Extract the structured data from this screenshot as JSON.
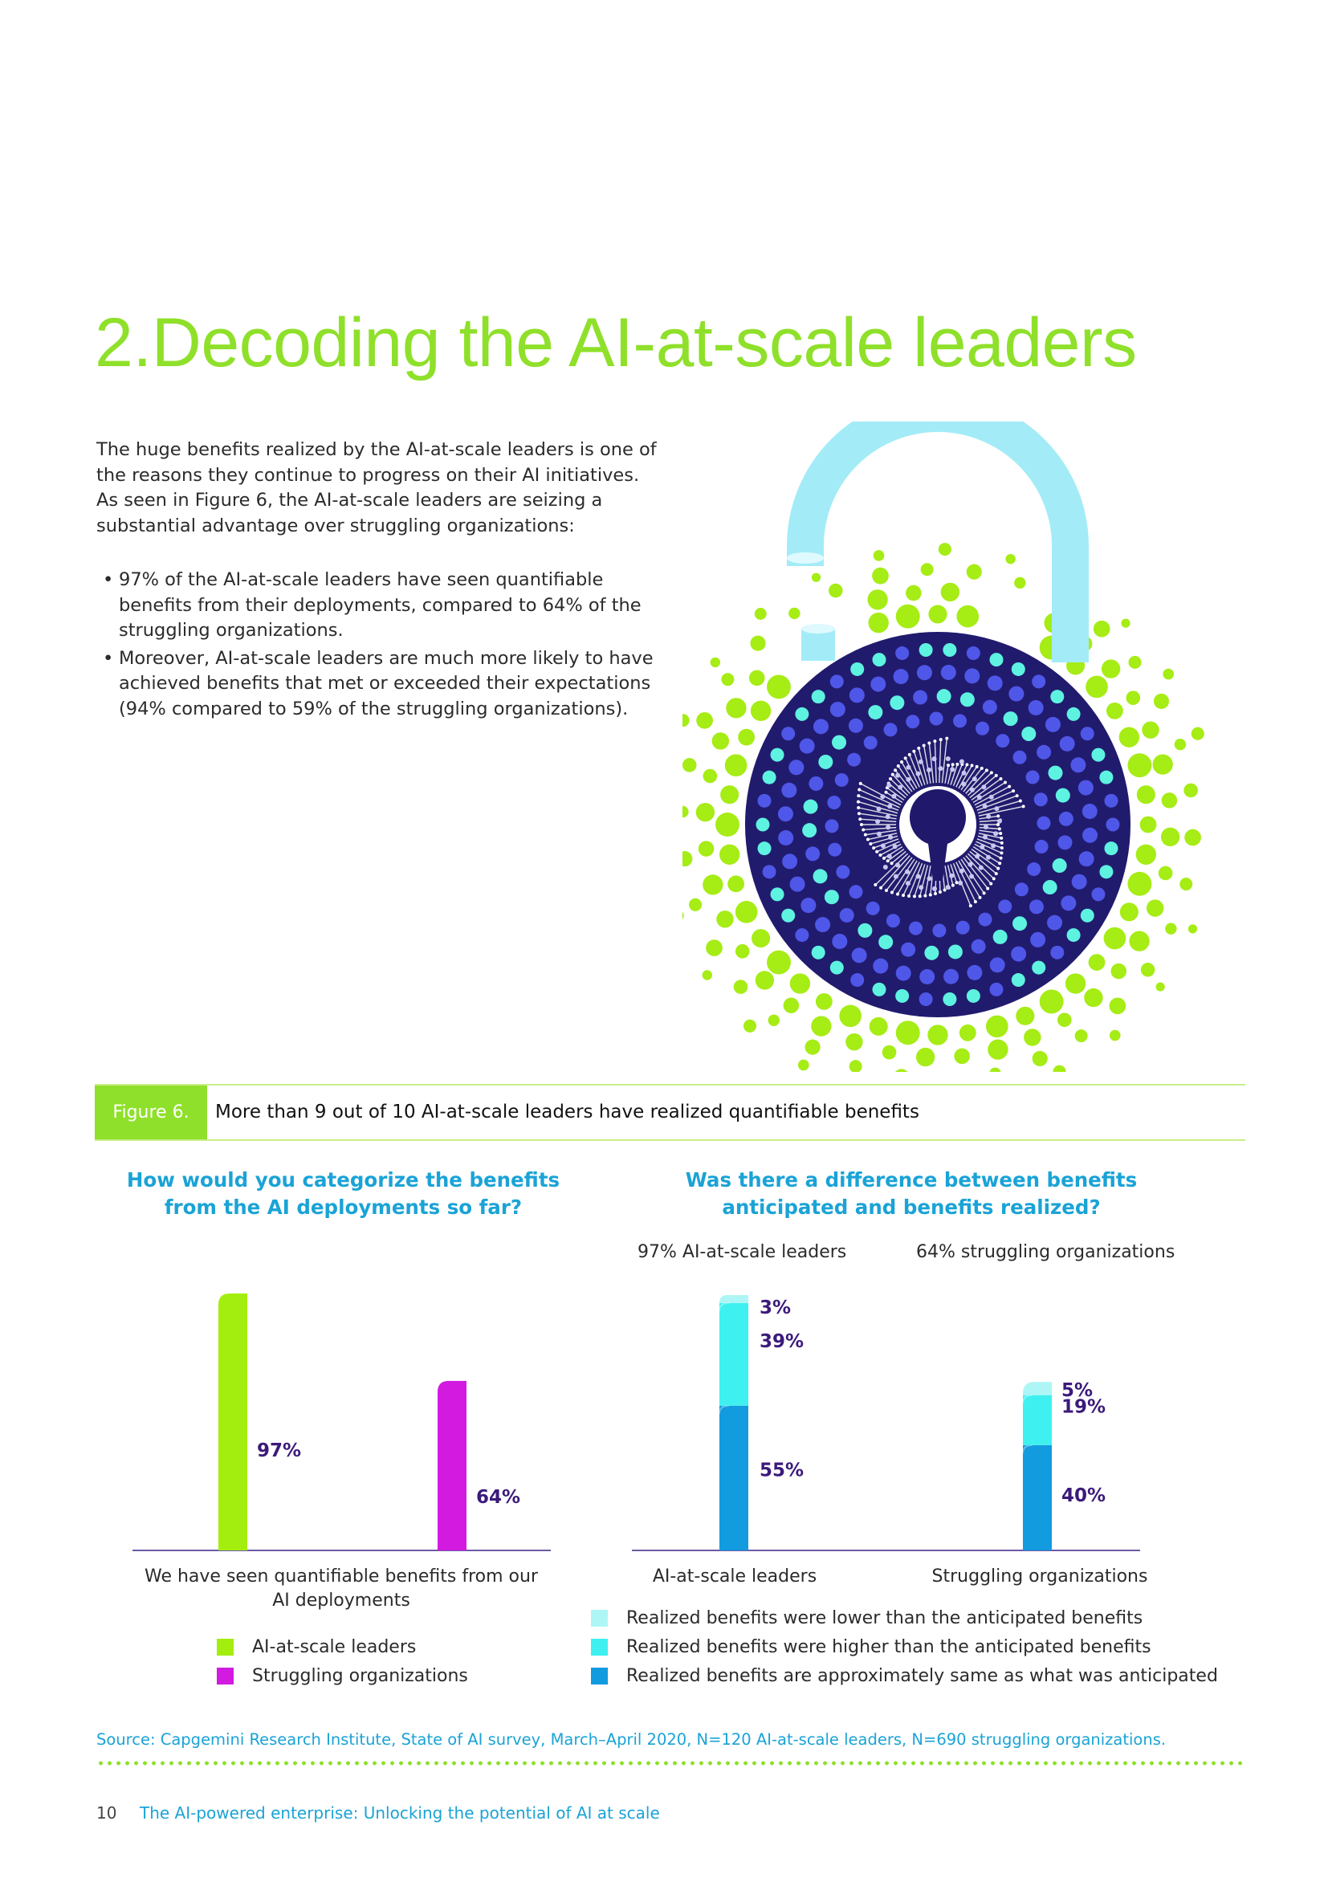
{
  "page": {
    "title": "2.Decoding the AI-at-scale leaders",
    "intro": "The huge benefits realized by the AI-at-scale leaders is one of the reasons they continue to progress on their AI initiatives. As seen in Figure 6, the AI-at-scale leaders are seizing a substantial advantage over struggling organizations:",
    "bullets": [
      "97% of the AI-at-scale leaders have seen quantifiable benefits from their deployments, compared to 64% of the struggling organizations.",
      "Moreover, AI-at-scale leaders are much more likely to have achieved benefits that met or exceeded their expectations (94% compared to 59% of the struggling organizations)."
    ]
  },
  "figure": {
    "label": "Figure 6.",
    "caption": "More than 9 out of 10 AI-at-scale leaders have realized quantifiable benefits"
  },
  "chart_data": [
    {
      "type": "bar",
      "title": "How would you categorize the benefits from the AI deployments so far?",
      "categories": [
        "We have seen quantifiable benefits from our AI deployments"
      ],
      "series": [
        {
          "name": "AI-at-scale leaders",
          "values": [
            97
          ],
          "labels": [
            "97%"
          ],
          "color": "#a4ee0f"
        },
        {
          "name": "Struggling organizations",
          "values": [
            64
          ],
          "labels": [
            "64%"
          ],
          "color": "#d21ae0"
        }
      ],
      "ylim": [
        0,
        100
      ],
      "legend": "bottom-left"
    },
    {
      "type": "bar",
      "stacked": true,
      "title": "Was there a difference between benefits anticipated and benefits realized?",
      "group_headers": [
        "97% AI-at-scale leaders",
        "64% struggling organizations"
      ],
      "categories": [
        "AI-at-scale leaders",
        "Struggling organizations"
      ],
      "series": [
        {
          "name": "Realized benefits are approximately same as what was anticipated",
          "values": [
            55,
            40
          ],
          "labels": [
            "55%",
            "40%"
          ],
          "color": "#129bdf"
        },
        {
          "name": "Realized benefits were higher than the anticipated benefits",
          "values": [
            39,
            19
          ],
          "labels": [
            "39%",
            "19%"
          ],
          "color": "#3ff0f0"
        },
        {
          "name": "Realized benefits were lower than the anticipated benefits",
          "values": [
            3,
            5
          ],
          "labels": [
            "3%",
            "5%"
          ],
          "color": "#aef6f6"
        }
      ],
      "legend_order": [
        2,
        1,
        0
      ],
      "ylim": [
        0,
        100
      ],
      "legend": "bottom"
    }
  ],
  "source": "Source: Capgemini Research Institute, State of AI survey, March–April 2020, N=120 AI-at-scale leaders, N=690 struggling organizations.",
  "footer": {
    "page_number": "10",
    "title": "The AI-powered enterprise: Unlocking the potential of AI at scale"
  },
  "icons": {
    "illustration": "padlock-icon"
  },
  "colors": {
    "accent_green": "#8fe02a",
    "accent_blue": "#1aa3d6",
    "bar_label": "#3b1a7a",
    "axis": "#6b5aa6"
  }
}
